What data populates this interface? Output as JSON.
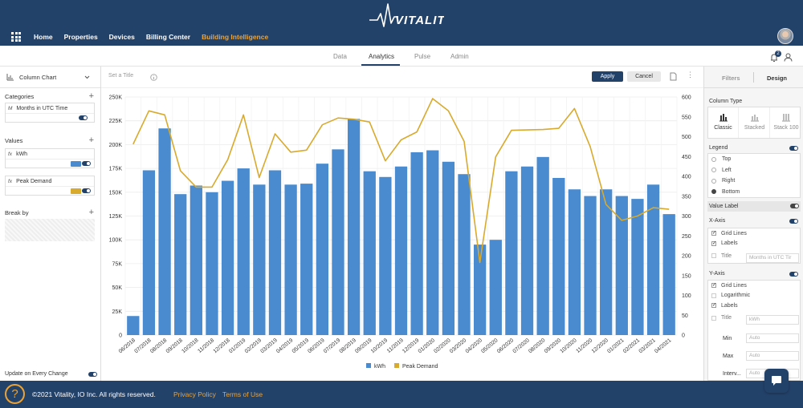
{
  "brand": {
    "name": "VITALITY",
    "mark": "™"
  },
  "colors": {
    "navy": "#23426a",
    "accent": "#e8a33a",
    "bar": "#4a8bd0",
    "line": "#d8aa2d"
  },
  "topnav": {
    "items": [
      {
        "label": "Home"
      },
      {
        "label": "Properties"
      },
      {
        "label": "Devices"
      },
      {
        "label": "Billing Center"
      },
      {
        "label": "Building Intelligence",
        "active": true
      }
    ]
  },
  "subtabs": [
    "Data",
    "Analytics",
    "Pulse",
    "Admin"
  ],
  "notifications": {
    "count": "2"
  },
  "left": {
    "chart_type": "Column Chart",
    "categories_label": "Categories",
    "category_field": {
      "prefix": "M",
      "label": "Months in UTC Time"
    },
    "values_label": "Values",
    "value_fields": [
      {
        "prefix": "fx",
        "label": "kWh",
        "color": "#4a8bd0"
      },
      {
        "prefix": "fx",
        "label": "Peak Demand",
        "color": "#d8aa2d"
      }
    ],
    "breakby_label": "Break by",
    "update_label": "Update on Every Change"
  },
  "toolbar": {
    "title_placeholder": "Set a Title",
    "apply_label": "Apply",
    "cancel_label": "Cancel"
  },
  "chart_data": {
    "type": "bar",
    "categories": [
      "06/2018",
      "07/2018",
      "08/2018",
      "09/2018",
      "10/2018",
      "11/2018",
      "12/2018",
      "01/2019",
      "02/2019",
      "03/2019",
      "04/2019",
      "05/2019",
      "06/2019",
      "07/2019",
      "08/2019",
      "09/2019",
      "10/2019",
      "11/2019",
      "12/2019",
      "01/2020",
      "02/2020",
      "03/2020",
      "04/2020",
      "05/2020",
      "06/2020",
      "07/2020",
      "08/2020",
      "09/2020",
      "10/2020",
      "11/2020",
      "12/2020",
      "01/2021",
      "02/2021",
      "03/2021",
      "04/2021"
    ],
    "series": [
      {
        "name": "kWh",
        "type": "bar",
        "axis": "left",
        "color": "#4a8bd0",
        "values": [
          20000,
          173000,
          217000,
          148000,
          157000,
          150000,
          162000,
          175000,
          158000,
          173000,
          158000,
          159000,
          180000,
          195000,
          227000,
          172000,
          166000,
          177000,
          192000,
          194000,
          182000,
          169000,
          95000,
          100000,
          172000,
          177000,
          187000,
          165000,
          153000,
          146000,
          153000,
          146000,
          143000,
          158000,
          127000
        ]
      },
      {
        "name": "Peak Demand",
        "type": "line",
        "axis": "right",
        "color": "#d8aa2d",
        "values": [
          481,
          565,
          555,
          414,
          373,
          373,
          442,
          555,
          397,
          507,
          461,
          466,
          530,
          547,
          544,
          537,
          439,
          492,
          512,
          596,
          565,
          488,
          183,
          449,
          516,
          517,
          518,
          521,
          571,
          475,
          329,
          289,
          300,
          321,
          317
        ]
      }
    ],
    "ylim": [
      0,
      250000
    ],
    "y_ticks": [
      "0",
      "25K",
      "50K",
      "75K",
      "100K",
      "125K",
      "150K",
      "175K",
      "200K",
      "225K",
      "250K"
    ],
    "y2lim": [
      0,
      600
    ],
    "y2_ticks": [
      "0",
      "50",
      "100",
      "150",
      "200",
      "250",
      "300",
      "350",
      "400",
      "450",
      "500",
      "550",
      "600"
    ],
    "grid": true,
    "legend": "bottom-center"
  },
  "right": {
    "tabs": {
      "filters": "Filters",
      "design": "Design"
    },
    "column_type": {
      "label": "Column Type",
      "options": [
        "Classic",
        "Stacked",
        "Stack 100"
      ]
    },
    "legend": {
      "label": "Legend",
      "options": [
        "Top",
        "Left",
        "Right",
        "Bottom"
      ],
      "selected": "Bottom"
    },
    "value_label": "Value Label",
    "xaxis": {
      "label": "X-Axis",
      "grid": "Grid Lines",
      "labels": "Labels",
      "title": "Title",
      "title_placeholder": "Months in UTC Tir"
    },
    "yaxis": {
      "label": "Y-Axis",
      "grid": "Grid Lines",
      "log": "Logarithmic",
      "labels": "Labels",
      "title": "Title",
      "title_placeholder": "kWh",
      "min": "Min",
      "max": "Max",
      "interval": "Interv...",
      "auto": "Auto"
    }
  },
  "footer": {
    "copyright": "©2021 Vitality, IO Inc.  All rights reserved.",
    "privacy": "Privacy Policy",
    "terms": "Terms of Use"
  }
}
